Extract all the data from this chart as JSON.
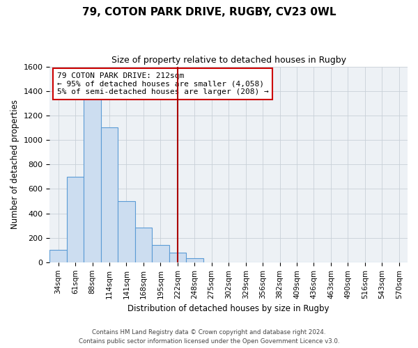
{
  "title": "79, COTON PARK DRIVE, RUGBY, CV23 0WL",
  "subtitle": "Size of property relative to detached houses in Rugby",
  "xlabel": "Distribution of detached houses by size in Rugby",
  "ylabel": "Number of detached properties",
  "footnote1": "Contains HM Land Registry data © Crown copyright and database right 2024.",
  "footnote2": "Contains public sector information licensed under the Open Government Licence v3.0.",
  "bin_labels": [
    "34sqm",
    "61sqm",
    "88sqm",
    "114sqm",
    "141sqm",
    "168sqm",
    "195sqm",
    "222sqm",
    "248sqm",
    "275sqm",
    "302sqm",
    "329sqm",
    "356sqm",
    "382sqm",
    "409sqm",
    "436sqm",
    "463sqm",
    "490sqm",
    "516sqm",
    "543sqm",
    "570sqm"
  ],
  "bar_heights": [
    100,
    700,
    1340,
    1100,
    500,
    285,
    140,
    80,
    35,
    0,
    0,
    0,
    0,
    0,
    0,
    0,
    0,
    0,
    0,
    0,
    0
  ],
  "bar_color": "#ccddf0",
  "bar_edgecolor": "#5b9bd5",
  "grid_color": "#c8d0d8",
  "bg_color": "#edf1f5",
  "vline_x": 7,
  "vline_color": "#aa0000",
  "annotation_line1": "79 COTON PARK DRIVE: 212sqm",
  "annotation_line2": "← 95% of detached houses are smaller (4,058)",
  "annotation_line3": "5% of semi-detached houses are larger (208) →",
  "ylim": [
    0,
    1600
  ],
  "yticks": [
    0,
    200,
    400,
    600,
    800,
    1000,
    1200,
    1400,
    1600
  ]
}
